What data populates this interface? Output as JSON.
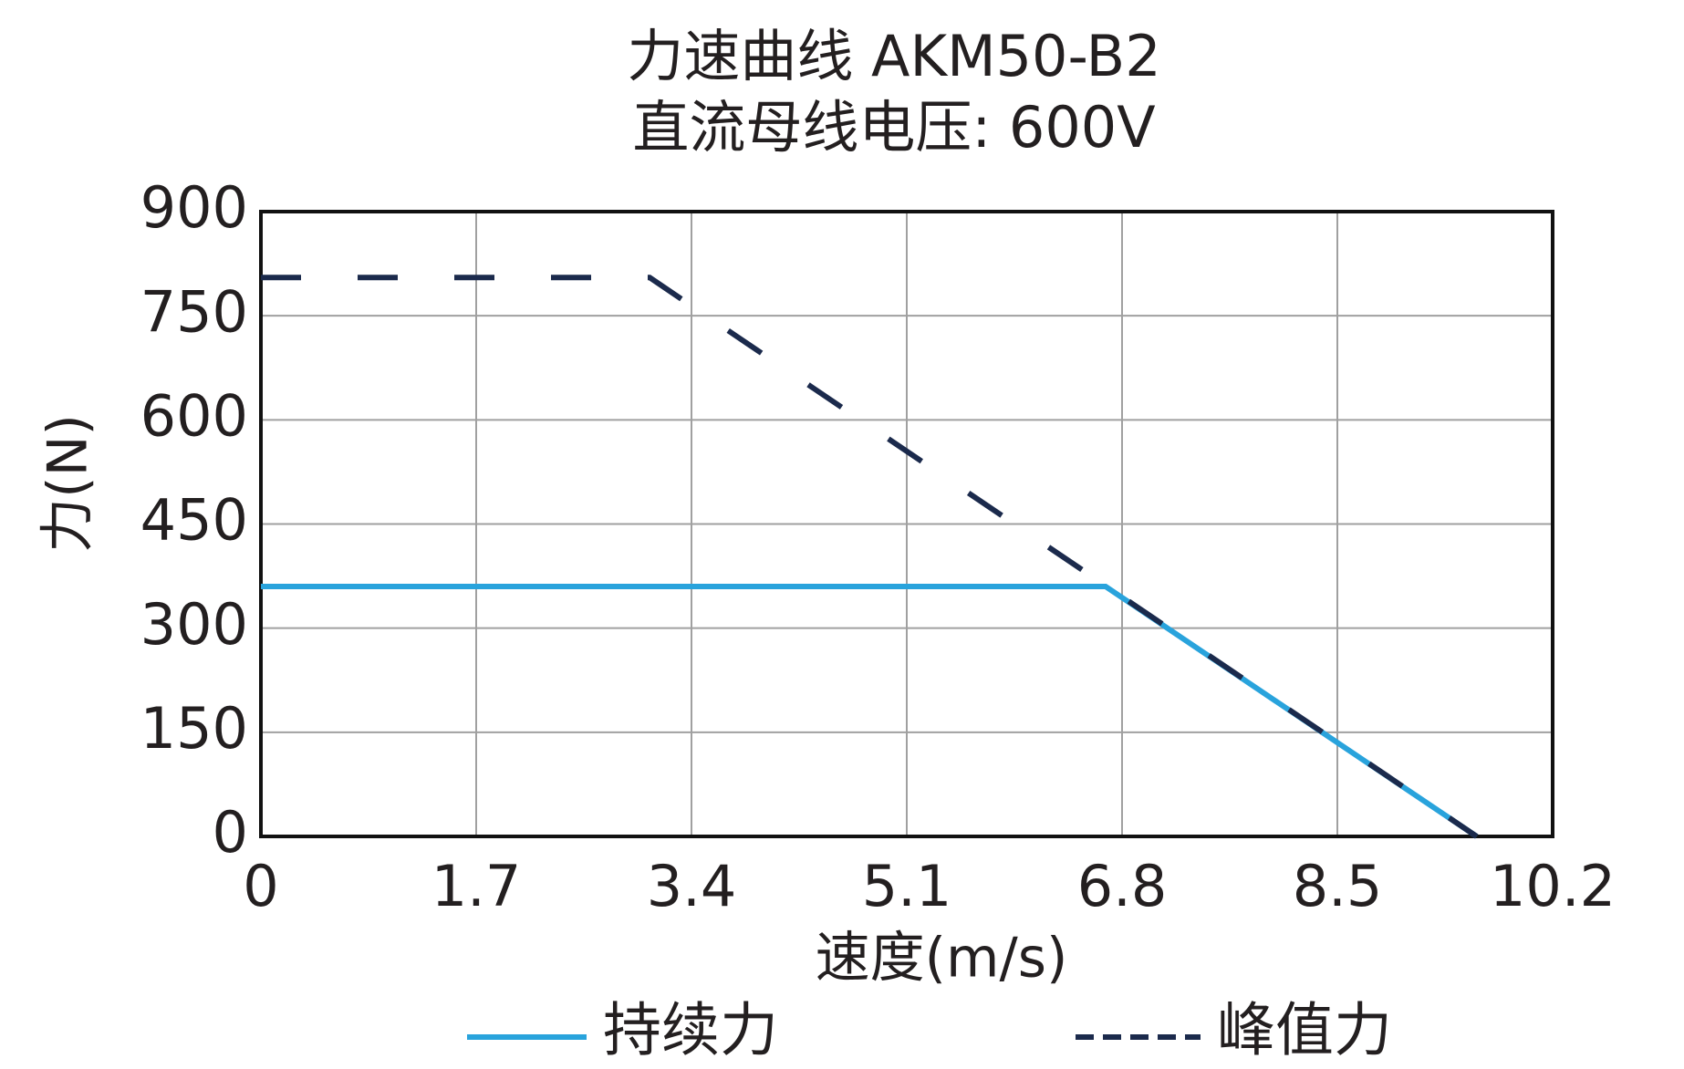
{
  "chart_data": {
    "type": "line",
    "title": "力速曲线 AKM50-B2",
    "subtitle": "直流母线电压: 600V",
    "x_label": "速度(m/s)",
    "y_label": "力(N)",
    "xlim": [
      0,
      10.2
    ],
    "xticks": [
      0,
      1.7,
      3.4,
      5.1,
      6.8,
      8.5,
      10.2
    ],
    "ylim": [
      0,
      900
    ],
    "yticks": [
      0,
      150,
      300,
      450,
      600,
      750,
      900
    ],
    "grid": true,
    "legend": "bottom",
    "series": [
      {
        "name": "持续力",
        "color": "#29a3dc",
        "dash": false,
        "x": [
          0,
          6.67,
          9.6
        ],
        "values": [
          360,
          360,
          0
        ]
      },
      {
        "name": "峰值力",
        "color": "#1b2a4c",
        "dash": true,
        "x": [
          0,
          3.07,
          9.6
        ],
        "values": [
          805,
          805,
          0
        ]
      }
    ]
  }
}
